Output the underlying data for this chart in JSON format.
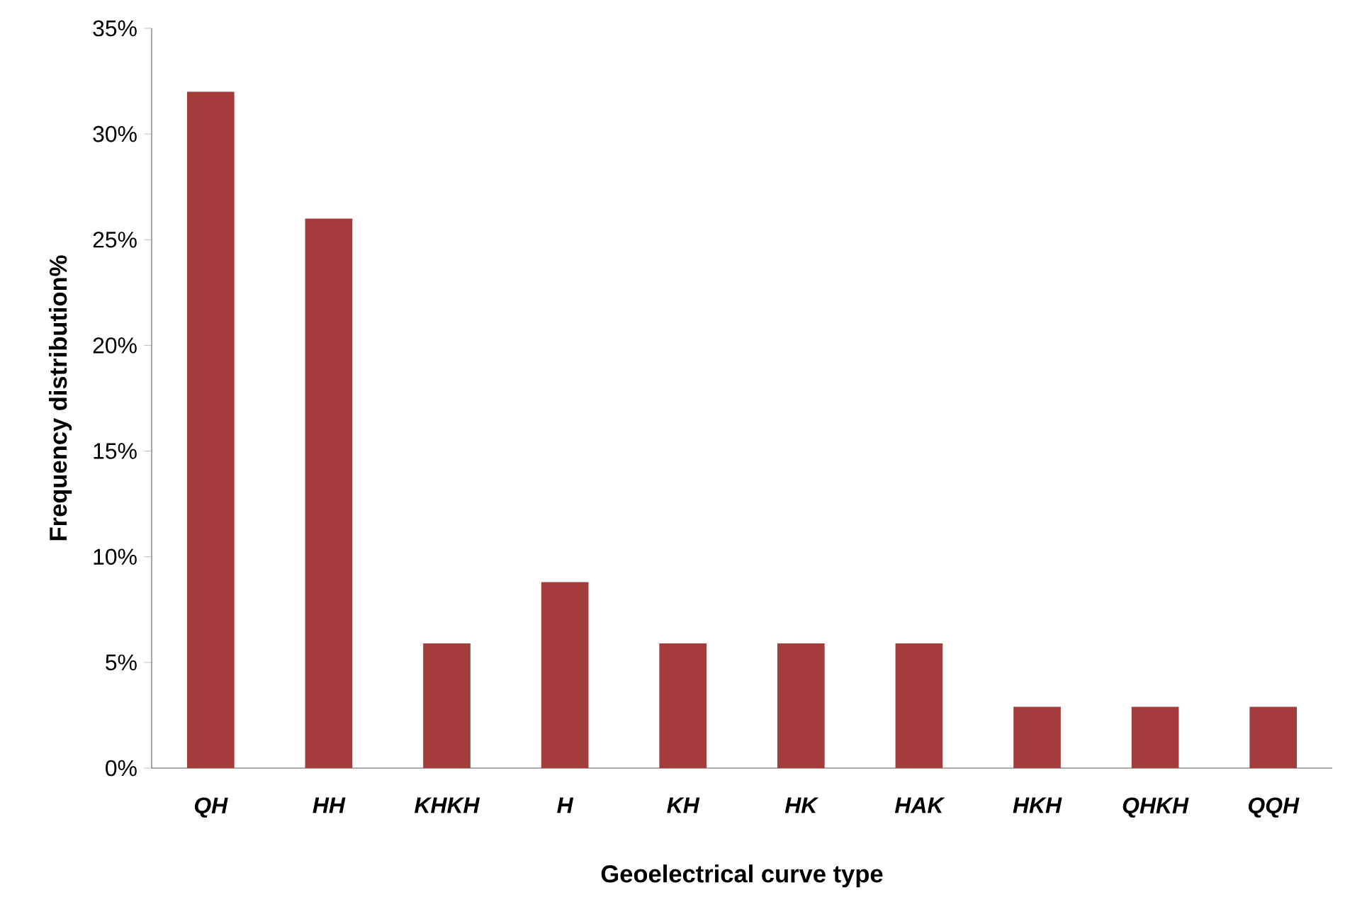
{
  "chart_data": {
    "type": "bar",
    "xlabel": "Geoelectrical  curve type",
    "ylabel": "Frequency distribution%",
    "categories": [
      "QH",
      "HH",
      "KHKH",
      "H",
      "KH",
      "HK",
      "HAK",
      "HKH",
      "QHKH",
      "QQH"
    ],
    "values": [
      32,
      26,
      5.9,
      8.8,
      5.9,
      5.9,
      5.9,
      2.9,
      2.9,
      2.9
    ],
    "color": "#a33c3a",
    "ylim": [
      0,
      35
    ],
    "yticks": [
      {
        "value": 0,
        "label": "0%"
      },
      {
        "value": 5,
        "label": "5%"
      },
      {
        "value": 10,
        "label": "10%"
      },
      {
        "value": 15,
        "label": "15%"
      },
      {
        "value": 20,
        "label": "20%"
      },
      {
        "value": 25,
        "label": "25%"
      },
      {
        "value": 30,
        "label": "30%"
      },
      {
        "value": 35,
        "label": "35%"
      }
    ],
    "grid": false
  }
}
